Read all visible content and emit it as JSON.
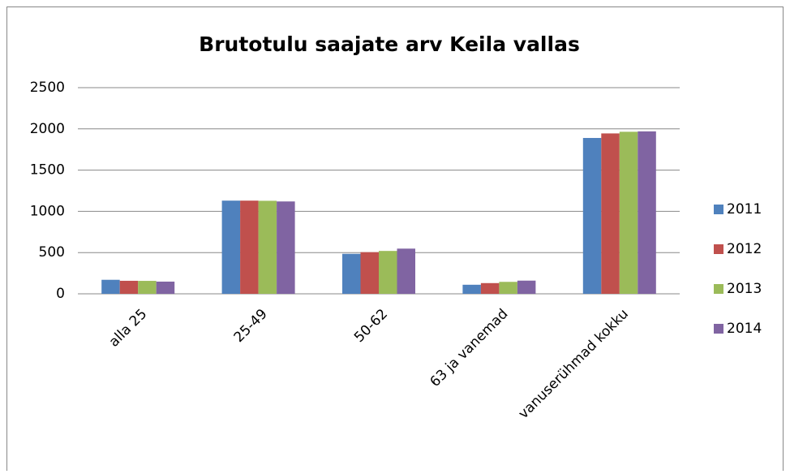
{
  "chart_data": {
    "type": "bar",
    "title": "Brutotulu saajate arv Keila vallas",
    "categories": [
      "alla 25",
      "25-49",
      "50-62",
      "63 ja vanemad",
      "vanuserühmad kokku"
    ],
    "series": [
      {
        "name": "2011",
        "color": "#4f81bd",
        "values": [
          170,
          1130,
          485,
          110,
          1890
        ]
      },
      {
        "name": "2012",
        "color": "#c0504d",
        "values": [
          158,
          1130,
          505,
          130,
          1945
        ]
      },
      {
        "name": "2013",
        "color": "#9bbb59",
        "values": [
          157,
          1128,
          520,
          145,
          1965
        ]
      },
      {
        "name": "2014",
        "color": "#8064a2",
        "values": [
          148,
          1120,
          548,
          160,
          1970
        ]
      }
    ],
    "ylim": [
      0,
      2500
    ],
    "yticks": [
      0,
      500,
      1000,
      1500,
      2000,
      2500
    ],
    "grid": true,
    "legend": "right"
  }
}
